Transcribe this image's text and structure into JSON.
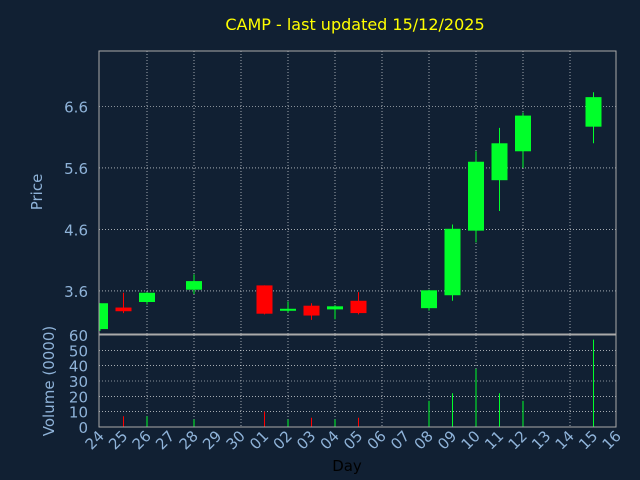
{
  "chart_data": {
    "type": "candlestick",
    "title": "CAMP - last updated 15/12/2025",
    "xlabel": "Day",
    "price_panel": {
      "ylabel": "Price",
      "ylim": [
        2.9,
        7.5
      ],
      "yticks": [
        "3.6",
        "4.6",
        "5.6",
        "6.6"
      ],
      "grid": true
    },
    "volume_panel": {
      "ylabel": "Volume (0000)",
      "ylim": [
        0,
        60
      ],
      "yticks": [
        "0",
        "10",
        "20",
        "30",
        "40",
        "50",
        "60"
      ],
      "grid": true
    },
    "categories": [
      "24",
      "25",
      "26",
      "27",
      "28",
      "29",
      "30",
      "01",
      "02",
      "03",
      "04",
      "05",
      "06",
      "07",
      "08",
      "09",
      "10",
      "11",
      "12",
      "13",
      "14",
      "15",
      "16"
    ],
    "candles": [
      {
        "day": "24",
        "open": 2.98,
        "high": 3.4,
        "low": 2.95,
        "close": 3.4,
        "volume": 0
      },
      {
        "day": "25",
        "open": 3.33,
        "high": 3.57,
        "low": 3.24,
        "close": 3.27,
        "volume": 7
      },
      {
        "day": "26",
        "open": 3.42,
        "high": 3.58,
        "low": 3.38,
        "close": 3.57,
        "volume": 7
      },
      {
        "day": "28",
        "open": 3.62,
        "high": 3.87,
        "low": 3.55,
        "close": 3.76,
        "volume": 5
      },
      {
        "day": "01",
        "open": 3.69,
        "high": 3.69,
        "low": 3.22,
        "close": 3.23,
        "volume": 10
      },
      {
        "day": "02",
        "open": 3.28,
        "high": 3.43,
        "low": 3.25,
        "close": 3.31,
        "volume": 5
      },
      {
        "day": "03",
        "open": 3.36,
        "high": 3.4,
        "low": 3.13,
        "close": 3.2,
        "volume": 6
      },
      {
        "day": "04",
        "open": 3.3,
        "high": 3.37,
        "low": 3.14,
        "close": 3.35,
        "volume": 5
      },
      {
        "day": "05",
        "open": 3.44,
        "high": 3.58,
        "low": 3.22,
        "close": 3.24,
        "volume": 6
      },
      {
        "day": "08",
        "open": 3.32,
        "high": 3.62,
        "low": 3.28,
        "close": 3.61,
        "volume": 17
      },
      {
        "day": "09",
        "open": 3.53,
        "high": 4.68,
        "low": 3.44,
        "close": 4.61,
        "volume": 22
      },
      {
        "day": "10",
        "open": 4.58,
        "high": 5.87,
        "low": 4.39,
        "close": 5.7,
        "volume": 38
      },
      {
        "day": "11",
        "open": 5.4,
        "high": 6.25,
        "low": 4.9,
        "close": 6.0,
        "volume": 22
      },
      {
        "day": "12",
        "open": 5.87,
        "high": 6.5,
        "low": 5.6,
        "close": 6.45,
        "volume": 17
      },
      {
        "day": "15",
        "open": 6.27,
        "high": 6.83,
        "low": 6.0,
        "close": 6.75,
        "volume": 57
      }
    ],
    "colors": {
      "up": "#00ff2a",
      "down": "#ff0000",
      "background": "#112033",
      "title": "#ffff00",
      "axis_text": "#8fb3d9",
      "frame": "#aaaaaa",
      "grid": "#ffffff"
    }
  }
}
